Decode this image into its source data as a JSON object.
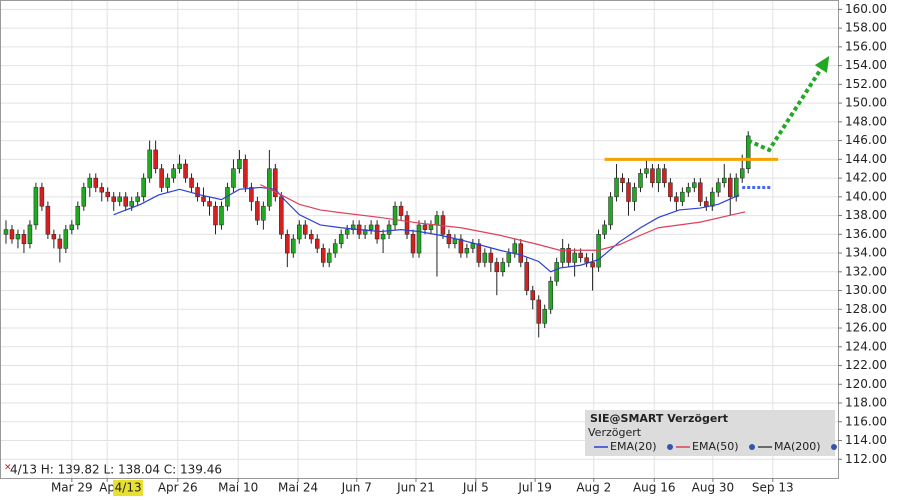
{
  "chart_data": {
    "type": "candlestick",
    "xlim": [
      0,
      140
    ],
    "ylim": [
      110,
      161
    ],
    "yticks": [
      {
        "value": 112,
        "label": "112.00"
      },
      {
        "value": 114,
        "label": "114.00"
      },
      {
        "value": 116,
        "label": "116.00"
      },
      {
        "value": 118,
        "label": "118.00"
      },
      {
        "value": 120,
        "label": "120.00"
      },
      {
        "value": 122,
        "label": "122.00"
      },
      {
        "value": 124,
        "label": "124.00"
      },
      {
        "value": 126,
        "label": "126.00"
      },
      {
        "value": 128,
        "label": "128.00"
      },
      {
        "value": 130,
        "label": "130.00"
      },
      {
        "value": 132,
        "label": "132.00"
      },
      {
        "value": 134,
        "label": "134.00"
      },
      {
        "value": 136,
        "label": "136.00"
      },
      {
        "value": 138,
        "label": "138.00"
      },
      {
        "value": 140,
        "label": "140.00"
      },
      {
        "value": 142,
        "label": "142.00"
      },
      {
        "value": 144,
        "label": "144.00"
      },
      {
        "value": 146,
        "label": "146.00"
      },
      {
        "value": 148,
        "label": "148.00"
      },
      {
        "value": 150,
        "label": "150.00"
      },
      {
        "value": 152,
        "label": "152.00"
      },
      {
        "value": 154,
        "label": "154.00"
      },
      {
        "value": 156,
        "label": "156.00"
      },
      {
        "value": 158,
        "label": "158.00"
      },
      {
        "value": 160,
        "label": "160.00"
      }
    ],
    "xticks": [
      {
        "value": 12,
        "label": "Mar 29"
      },
      {
        "value": 17.9,
        "label": "Ap"
      },
      {
        "value": 29.7,
        "label": "Apr 26"
      },
      {
        "value": 39.8,
        "label": "Mai 10"
      },
      {
        "value": 49.8,
        "label": "Mai 24"
      },
      {
        "value": 59.6,
        "label": "Jun 7"
      },
      {
        "value": 69.5,
        "label": "Jun 21"
      },
      {
        "value": 79.5,
        "label": "Jul 5"
      },
      {
        "value": 89.4,
        "label": "Jul 19"
      },
      {
        "value": 99.2,
        "label": "Aug 2"
      },
      {
        "value": 109.3,
        "label": "Aug 16"
      },
      {
        "value": 119.1,
        "label": "Aug 30"
      },
      {
        "value": 129.1,
        "label": "Sep 13"
      }
    ],
    "grid": true,
    "up_color": "#22a822",
    "down_color": "#d42020",
    "x": [
      1,
      2,
      3,
      4,
      5,
      6,
      7,
      8,
      9,
      10,
      11,
      12,
      13,
      14,
      15,
      16,
      17,
      18,
      19,
      20,
      21,
      22,
      23,
      24,
      25,
      26,
      27,
      28,
      29,
      30,
      31,
      32,
      33,
      34,
      35,
      36,
      37,
      38,
      39,
      40,
      41,
      42,
      43,
      44,
      45,
      46,
      47,
      48,
      49,
      50,
      51,
      52,
      53,
      54,
      55,
      56,
      57,
      58,
      59,
      60,
      61,
      62,
      63,
      64,
      65,
      66,
      67,
      68,
      69,
      70,
      71,
      72,
      73,
      74,
      75,
      76,
      77,
      78,
      79,
      80,
      81,
      82,
      83,
      84,
      85,
      86,
      87,
      88,
      89,
      90,
      91,
      92,
      93,
      94,
      95,
      96,
      97,
      98,
      99,
      100,
      101,
      102,
      103,
      104,
      105,
      106,
      107,
      108,
      109,
      110,
      111,
      112,
      113,
      114,
      115,
      116,
      117,
      118,
      119,
      120,
      121,
      122,
      123,
      124,
      125
    ],
    "candles": [
      [
        136,
        137.5,
        135,
        136.5
      ],
      [
        136.5,
        137,
        135,
        135.5
      ],
      [
        135.5,
        136.5,
        134.5,
        136
      ],
      [
        136,
        136.5,
        134,
        135
      ],
      [
        135,
        137.5,
        134.5,
        137
      ],
      [
        137,
        141.5,
        136.5,
        141
      ],
      [
        141,
        141.5,
        138.5,
        139
      ],
      [
        139,
        139.5,
        135.5,
        136
      ],
      [
        136,
        136.5,
        134.5,
        135.5
      ],
      [
        135.5,
        136,
        133,
        134.5
      ],
      [
        134.5,
        137,
        134,
        136.5
      ],
      [
        136.5,
        137.5,
        136,
        137
      ],
      [
        137,
        139.5,
        136.5,
        139
      ],
      [
        139,
        141.5,
        138.5,
        141
      ],
      [
        141,
        142.5,
        140,
        142
      ],
      [
        142,
        142.5,
        140.5,
        141
      ],
      [
        141,
        141.5,
        139.5,
        140.5
      ],
      [
        140.5,
        141,
        139.5,
        140
      ],
      [
        140,
        140.5,
        138.5,
        139.5
      ],
      [
        139.5,
        140.5,
        139,
        140
      ],
      [
        140,
        140.5,
        138.5,
        139
      ],
      [
        139,
        140,
        138.5,
        139.5
      ],
      [
        139.5,
        140.5,
        139,
        140
      ],
      [
        140,
        142.5,
        139.5,
        142
      ],
      [
        142,
        146,
        141.5,
        145
      ],
      [
        145,
        146,
        142.5,
        143
      ],
      [
        143,
        143.5,
        140.5,
        141
      ],
      [
        141,
        142.5,
        140.5,
        142
      ],
      [
        142,
        143.5,
        141.5,
        143
      ],
      [
        143,
        144.5,
        142.5,
        143.5
      ],
      [
        143.5,
        144,
        141.5,
        142
      ],
      [
        142,
        142.5,
        140.5,
        141
      ],
      [
        141,
        141.5,
        139.5,
        140
      ],
      [
        140,
        141,
        139,
        139.5
      ],
      [
        139.5,
        140,
        138,
        139
      ],
      [
        139,
        139.5,
        136,
        137
      ],
      [
        137,
        139.5,
        136.5,
        139
      ],
      [
        139,
        141.5,
        138.5,
        141
      ],
      [
        141,
        144,
        140.5,
        143
      ],
      [
        143,
        145,
        142.5,
        144
      ],
      [
        144,
        144.5,
        140.5,
        141
      ],
      [
        141,
        141.5,
        138.5,
        139.5
      ],
      [
        139.5,
        140,
        137,
        137.5
      ],
      [
        137.5,
        139.5,
        136.5,
        139
      ],
      [
        139,
        145,
        138.5,
        143
      ],
      [
        143,
        143.5,
        139.5,
        140
      ],
      [
        140,
        140.5,
        135.5,
        136
      ],
      [
        136,
        136.5,
        132.5,
        134
      ],
      [
        134,
        136,
        133.5,
        135.5
      ],
      [
        135.5,
        137.5,
        135,
        137
      ],
      [
        137,
        137.5,
        135.5,
        136
      ],
      [
        136,
        136.5,
        135,
        135.5
      ],
      [
        135.5,
        136,
        134,
        134.5
      ],
      [
        134.5,
        135,
        132.5,
        133
      ],
      [
        133,
        134.5,
        132.5,
        134
      ],
      [
        134,
        135.5,
        133.5,
        135
      ],
      [
        135,
        136.5,
        134.5,
        136
      ],
      [
        136,
        137,
        135.5,
        136.5
      ],
      [
        136.5,
        137.5,
        136,
        137
      ],
      [
        137,
        137.5,
        135.5,
        136
      ],
      [
        136,
        137,
        135.5,
        136.5
      ],
      [
        136.5,
        137.5,
        136,
        137
      ],
      [
        137,
        137.5,
        135,
        135.5
      ],
      [
        135.5,
        136.5,
        134,
        136
      ],
      [
        136,
        137.5,
        135.5,
        137
      ],
      [
        137,
        139.5,
        136.5,
        139
      ],
      [
        139,
        139.5,
        137.5,
        138
      ],
      [
        138,
        138.5,
        135.5,
        136
      ],
      [
        136,
        136.5,
        133.5,
        134
      ],
      [
        134,
        137.5,
        133.5,
        137
      ],
      [
        137,
        137.5,
        136,
        136.5
      ],
      [
        136.5,
        137.5,
        136,
        137
      ],
      [
        137,
        138.5,
        131.5,
        138
      ],
      [
        138,
        138.5,
        135.5,
        136
      ],
      [
        136,
        136.5,
        134.5,
        135
      ],
      [
        135,
        136,
        134.5,
        135.5
      ],
      [
        135.5,
        136,
        133.5,
        134
      ],
      [
        134,
        135,
        133.5,
        134.5
      ],
      [
        134.5,
        135.5,
        134,
        135
      ],
      [
        135,
        135.5,
        132.5,
        133
      ],
      [
        133,
        134.5,
        132.5,
        134
      ],
      [
        134,
        134.5,
        132,
        133
      ],
      [
        133,
        133.5,
        129.5,
        132
      ],
      [
        132,
        133.5,
        131.5,
        133
      ],
      [
        133,
        134.5,
        132.5,
        134
      ],
      [
        134,
        135.5,
        133.5,
        135
      ],
      [
        135,
        135.5,
        132.5,
        133
      ],
      [
        133,
        133.5,
        129.5,
        130
      ],
      [
        130,
        130.5,
        128,
        129
      ],
      [
        129,
        129.5,
        125,
        126.5
      ],
      [
        126.5,
        128.5,
        126,
        128
      ],
      [
        128,
        131.5,
        127.5,
        131
      ],
      [
        131,
        133.5,
        130.5,
        133
      ],
      [
        133,
        135.5,
        132.5,
        134.5
      ],
      [
        134.5,
        135,
        132.5,
        133
      ],
      [
        133,
        134.5,
        131.5,
        134
      ],
      [
        134,
        134.5,
        133,
        133.5
      ],
      [
        133.5,
        134,
        132.5,
        133
      ],
      [
        133,
        134,
        130,
        132.5
      ],
      [
        132.5,
        136.5,
        132,
        136
      ],
      [
        136,
        137.5,
        135.5,
        137
      ],
      [
        137,
        140.5,
        136.5,
        140
      ],
      [
        140,
        143.5,
        139.5,
        142
      ],
      [
        142,
        142.5,
        140.5,
        141.5
      ],
      [
        141.5,
        142,
        138,
        139.5
      ],
      [
        139.5,
        141.5,
        138.5,
        141
      ],
      [
        141,
        143,
        140.5,
        142.5
      ],
      [
        142.5,
        144,
        142,
        143
      ],
      [
        143,
        143.5,
        141,
        141.5
      ],
      [
        141.5,
        143.5,
        140.5,
        143
      ],
      [
        143,
        143.5,
        141,
        141.5
      ],
      [
        141.5,
        142,
        139.5,
        140
      ],
      [
        140,
        140.5,
        138.5,
        139.5
      ],
      [
        139.5,
        141,
        139,
        140.5
      ],
      [
        140.5,
        141.5,
        140,
        141
      ],
      [
        141,
        142,
        140.5,
        141.5
      ],
      [
        141.5,
        142,
        139,
        139.5
      ],
      [
        139.5,
        140,
        138.5,
        139
      ],
      [
        139,
        141,
        138.5,
        140.5
      ],
      [
        140.5,
        142,
        140,
        141.5
      ],
      [
        141.5,
        143.5,
        141,
        142
      ],
      [
        142,
        142.5,
        138,
        140
      ],
      [
        140,
        142.5,
        139.5,
        142
      ],
      [
        142,
        144.5,
        141.5,
        143
      ],
      [
        143,
        147,
        142.5,
        146.5
      ]
    ],
    "overlays": [
      {
        "name": "EMA(20)",
        "color": "#2b3fd6",
        "x": [
          19,
          23.5,
          26.5,
          30,
          33.5,
          37,
          40,
          43.5,
          46,
          47.5,
          50,
          53.5,
          57,
          60,
          63.5,
          67,
          70,
          73.5,
          77,
          80,
          83.5,
          87,
          90,
          92,
          93.5,
          97,
          100,
          103.5,
          107,
          110,
          113.5,
          117,
          120,
          123.5
        ],
        "values": [
          138.1,
          139.2,
          140.2,
          140.8,
          140.2,
          139.7,
          140.8,
          141.0,
          140.8,
          139.7,
          138.1,
          137.0,
          136.7,
          136.5,
          136.3,
          136.5,
          136.3,
          135.9,
          135.4,
          134.9,
          134.3,
          133.8,
          133.1,
          132.0,
          132.4,
          132.7,
          133.3,
          135.2,
          136.7,
          137.8,
          138.6,
          138.8,
          139.2,
          140.2
        ]
      },
      {
        "name": "EMA(50)",
        "color": "#e0405a",
        "x": [
          43.5,
          47,
          50,
          53.5,
          57,
          63.5,
          70,
          77,
          83.5,
          90,
          93.5,
          100,
          103.5,
          107,
          110,
          117,
          124.5
        ],
        "values": [
          141.3,
          140.2,
          139.2,
          138.6,
          138.3,
          137.8,
          137.2,
          136.7,
          135.9,
          134.9,
          134.3,
          134.3,
          134.9,
          135.9,
          136.7,
          137.3,
          138.4
        ]
      }
    ],
    "annotations": [
      {
        "kind": "hline",
        "color": "#f5a300",
        "x": [
          101,
          130
        ],
        "y": 144
      },
      {
        "kind": "hline-dotted",
        "color": "#4466ff",
        "x": [
          124,
          129
        ],
        "y": 141
      },
      {
        "kind": "arrow",
        "color": "#22a822",
        "x": [
          125,
          128.5,
          138
        ],
        "values": [
          146,
          145,
          154.5
        ]
      }
    ],
    "legend": {
      "title": "SIE@SMART Verzögert",
      "subtitle": "Verzögert",
      "extra": [
        {
          "name": "MA(200)",
          "color": "#444444"
        }
      ]
    },
    "crosshair": {
      "date": "4/13",
      "status": "4/13 H: 139.82 L: 138.04 C: 139.46"
    }
  }
}
